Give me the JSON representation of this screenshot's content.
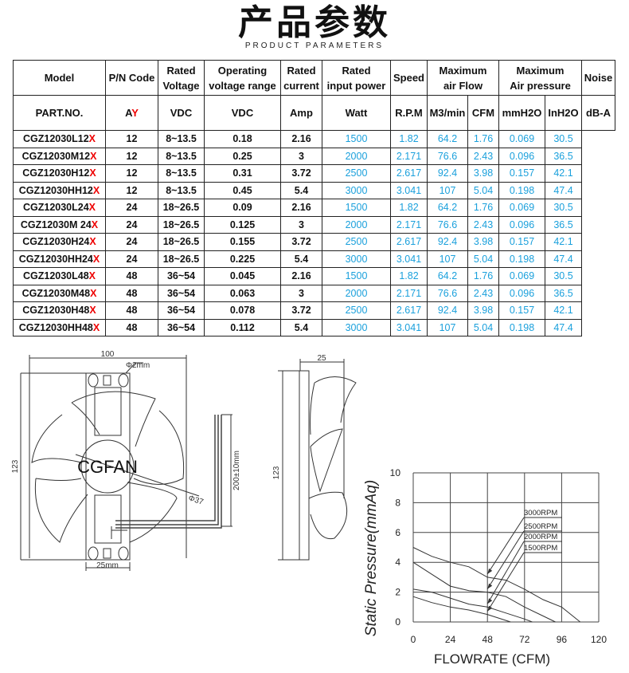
{
  "header": {
    "title": "产品参数",
    "subtitle": "PRODUCT PARAMETERS"
  },
  "table": {
    "headers": [
      "Model",
      "P/N Code",
      "Rated Voltage",
      "Operating voltage range",
      "Rated current",
      "Rated input power",
      "Speed",
      "Maximum air Flow",
      "Maximum Air pressure",
      "Noise"
    ],
    "header_lines": {
      "rated_voltage": [
        "Rated",
        "Voltage"
      ],
      "operating": [
        "Operating",
        "voltage range"
      ],
      "current": [
        "Rated",
        "current"
      ],
      "power": [
        "Rated",
        "input power"
      ],
      "airflow": [
        "Maximum",
        "air Flow"
      ],
      "pressure": [
        "Maximum",
        "Air pressure"
      ]
    },
    "units": [
      "PART.NO.",
      "",
      "VDC",
      "VDC",
      "Amp",
      "Watt",
      "R.P.M",
      "M3/min",
      "CFM",
      "mmH2O",
      "InH2O",
      "dB-A"
    ],
    "pn_code": {
      "prefix": "A",
      "suffix": "Y"
    },
    "rows": [
      {
        "model": "CGZ12030L12",
        "x": "X",
        "v": "12",
        "range": "8~13.5",
        "amp": "0.18",
        "watt": "2.16",
        "rpm": "1500",
        "m3": "1.82",
        "cfm": "64.2",
        "mmh2o": "1.76",
        "inh2o": "0.069",
        "db": "30.5"
      },
      {
        "model": "CGZ12030M12",
        "x": "X",
        "v": "12",
        "range": "8~13.5",
        "amp": "0.25",
        "watt": "3",
        "rpm": "2000",
        "m3": "2.171",
        "cfm": "76.6",
        "mmh2o": "2.43",
        "inh2o": "0.096",
        "db": "36.5"
      },
      {
        "model": "CGZ12030H12",
        "x": "X",
        "v": "12",
        "range": "8~13.5",
        "amp": "0.31",
        "watt": "3.72",
        "rpm": "2500",
        "m3": "2.617",
        "cfm": "92.4",
        "mmh2o": "3.98",
        "inh2o": "0.157",
        "db": "42.1"
      },
      {
        "model": "CGZ12030HH12",
        "x": "X",
        "v": "12",
        "range": "8~13.5",
        "amp": "0.45",
        "watt": "5.4",
        "rpm": "3000",
        "m3": "3.041",
        "cfm": "107",
        "mmh2o": "5.04",
        "inh2o": "0.198",
        "db": "47.4"
      },
      {
        "model": "CGZ12030L24",
        "x": "X",
        "v": "24",
        "range": "18~26.5",
        "amp": "0.09",
        "watt": "2.16",
        "rpm": "1500",
        "m3": "1.82",
        "cfm": "64.2",
        "mmh2o": "1.76",
        "inh2o": "0.069",
        "db": "30.5"
      },
      {
        "model": "CGZ12030M 24",
        "x": "X",
        "v": "24",
        "range": "18~26.5",
        "amp": "0.125",
        "watt": "3",
        "rpm": "2000",
        "m3": "2.171",
        "cfm": "76.6",
        "mmh2o": "2.43",
        "inh2o": "0.096",
        "db": "36.5"
      },
      {
        "model": "CGZ12030H24",
        "x": "X",
        "v": "24",
        "range": "18~26.5",
        "amp": "0.155",
        "watt": "3.72",
        "rpm": "2500",
        "m3": "2.617",
        "cfm": "92.4",
        "mmh2o": "3.98",
        "inh2o": "0.157",
        "db": "42.1"
      },
      {
        "model": "CGZ12030HH24",
        "x": "X",
        "v": "24",
        "range": "18~26.5",
        "amp": "0.225",
        "watt": "5.4",
        "rpm": "3000",
        "m3": "3.041",
        "cfm": "107",
        "mmh2o": "5.04",
        "inh2o": "0.198",
        "db": "47.4"
      },
      {
        "model": "CGZ12030L48",
        "x": "X",
        "v": "48",
        "range": "36~54",
        "amp": "0.045",
        "watt": "2.16",
        "rpm": "1500",
        "m3": "1.82",
        "cfm": "64.2",
        "mmh2o": "1.76",
        "inh2o": "0.069",
        "db": "30.5"
      },
      {
        "model": "CGZ12030M48",
        "x": "X",
        "v": "48",
        "range": "36~54",
        "amp": "0.063",
        "watt": "3",
        "rpm": "2000",
        "m3": "2.171",
        "cfm": "76.6",
        "mmh2o": "2.43",
        "inh2o": "0.096",
        "db": "36.5"
      },
      {
        "model": "CGZ12030H48",
        "x": "X",
        "v": "48",
        "range": "36~54",
        "amp": "0.078",
        "watt": "3.72",
        "rpm": "2500",
        "m3": "2.617",
        "cfm": "92.4",
        "mmh2o": "3.98",
        "inh2o": "0.157",
        "db": "42.1"
      },
      {
        "model": "CGZ12030HH48",
        "x": "X",
        "v": "48",
        "range": "36~54",
        "amp": "0.112",
        "watt": "5.4",
        "rpm": "3000",
        "m3": "3.041",
        "cfm": "107",
        "mmh2o": "5.04",
        "inh2o": "0.198",
        "db": "47.4"
      }
    ],
    "colors": {
      "performance": "#1aa0dc",
      "suffix": "#e00000"
    }
  },
  "drawing": {
    "front": {
      "width": "100",
      "height": "123",
      "hole": "Φ2mm",
      "hub": "Φ37",
      "bracket": "25mm",
      "cable": "200±10mm",
      "logo": "CGFAN"
    },
    "side": {
      "depth": "25",
      "height": "123"
    }
  },
  "chart_data": {
    "type": "line",
    "title": "",
    "xlabel": "FLOWRATE (CFM)",
    "ylabel": "Static Pressure(mmAq)",
    "xlim": [
      0,
      120
    ],
    "ylim": [
      0,
      10
    ],
    "xticks": [
      "0",
      "24",
      "48",
      "72",
      "96",
      "120"
    ],
    "yticks": [
      "0",
      "2",
      "4",
      "6",
      "8",
      "10"
    ],
    "grid": true,
    "series": [
      {
        "name": "3000RPM",
        "points": [
          [
            0,
            5.0
          ],
          [
            12,
            4.4
          ],
          [
            24,
            4.0
          ],
          [
            36,
            3.7
          ],
          [
            48,
            3.0
          ],
          [
            60,
            2.8
          ],
          [
            72,
            2.2
          ],
          [
            84,
            1.5
          ],
          [
            96,
            1.0
          ],
          [
            108,
            0
          ]
        ]
      },
      {
        "name": "2500RPM",
        "points": [
          [
            0,
            4.0
          ],
          [
            12,
            3.2
          ],
          [
            24,
            2.4
          ],
          [
            36,
            2.1
          ],
          [
            48,
            2.0
          ],
          [
            60,
            1.7
          ],
          [
            72,
            1.0
          ],
          [
            84,
            0.4
          ],
          [
            92,
            0
          ]
        ]
      },
      {
        "name": "2000RPM",
        "points": [
          [
            0,
            2.2
          ],
          [
            12,
            2.0
          ],
          [
            24,
            1.6
          ],
          [
            36,
            1.2
          ],
          [
            48,
            1.0
          ],
          [
            60,
            0.6
          ],
          [
            72,
            0.2
          ],
          [
            77,
            0
          ]
        ]
      },
      {
        "name": "1500RPM",
        "points": [
          [
            0,
            1.7
          ],
          [
            12,
            1.3
          ],
          [
            24,
            1.0
          ],
          [
            36,
            0.8
          ],
          [
            48,
            0.5
          ],
          [
            60,
            0.1
          ],
          [
            63,
            0
          ]
        ]
      }
    ]
  }
}
